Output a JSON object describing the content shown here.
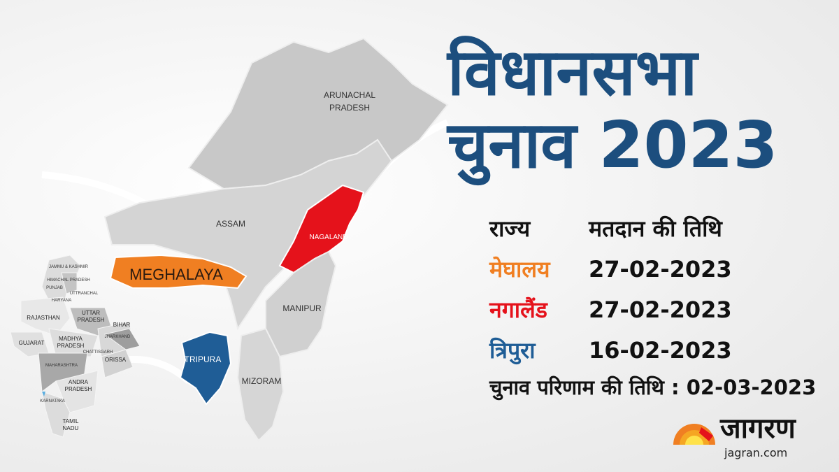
{
  "title": {
    "line1": "विधानसभा",
    "line2": "चुनाव 2023",
    "color": "#1c4e7e"
  },
  "table": {
    "headers": [
      "राज्य",
      "मतदान की तिथि"
    ],
    "rows": [
      {
        "state": "मेघालय",
        "date": "27-02-2023",
        "color": "#f07f22"
      },
      {
        "state": "नगालैंड",
        "date": "27-02-2023",
        "color": "#e5121b"
      },
      {
        "state": "त्रिपुरा",
        "date": "16-02-2023",
        "color": "#1f5d96"
      }
    ]
  },
  "result": {
    "label": "चुनाव परिणाम की तिथि : 02-03-2023"
  },
  "map": {
    "northeast": [
      "ARUNACHAL",
      "PRADESH",
      "ASSAM",
      "NAGALAND",
      "MEGHALAYA",
      "MANIPUR",
      "TRIPURA",
      "MIZORAM"
    ],
    "india": [
      "JAMMU & KASHMIR",
      "HIMACHAL PRADESH",
      "PUNJAB",
      "UTTRANCHAL",
      "HARYANA",
      "RAJASTHAN",
      "UTTAR",
      "PRADESH",
      "BIHAR",
      "JHARKHAND",
      "GUJARAT",
      "MADHYA",
      "PRADESH",
      "CHATTISGARH",
      "ORISSA",
      "MAHARASHTRA",
      "ANDRA",
      "PRADESH",
      "KARNATAKA",
      "TAMIL",
      "NADU"
    ],
    "highlight_colors": {
      "meghalaya": "#f07f22",
      "nagaland": "#e5121b",
      "tripura": "#1f5d96"
    }
  },
  "logo": {
    "name": "जागरण",
    "url": "jagran.com"
  }
}
